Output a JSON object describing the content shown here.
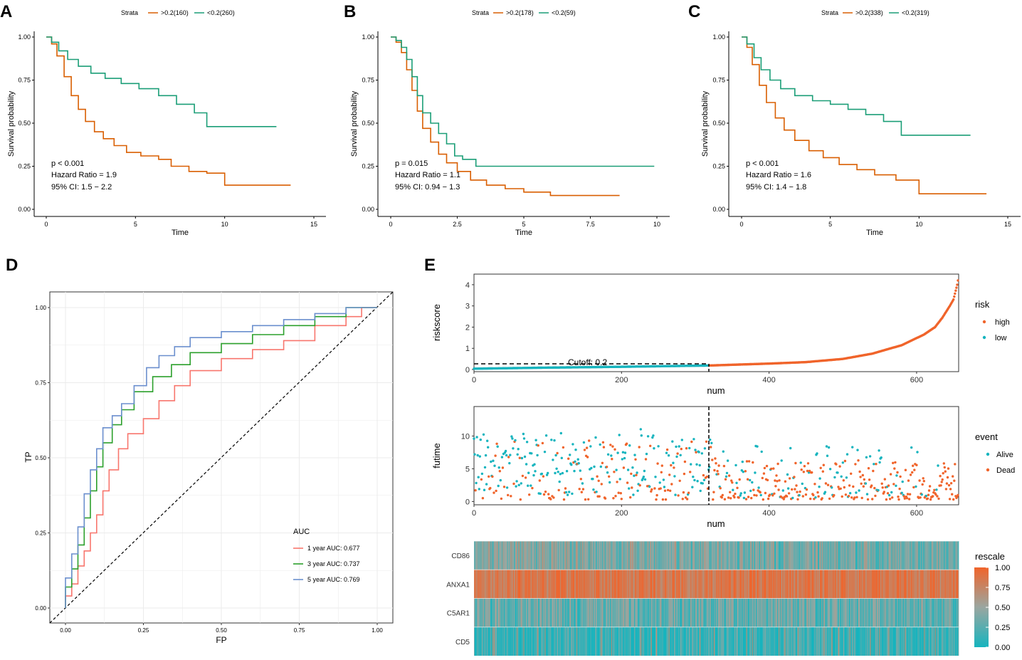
{
  "chart_data": [
    {
      "panel": "A",
      "type": "line",
      "subtype": "kaplan-meier",
      "legend_title": "Strata",
      "xlabel": "Time",
      "ylabel": "Survival probability",
      "xlim": [
        0,
        15
      ],
      "ylim": [
        0,
        1
      ],
      "x_ticks": [
        0,
        5,
        10,
        15
      ],
      "y_ticks": [
        0,
        0.25,
        0.5,
        0.75,
        1
      ],
      "x_tick_labels": [
        "0",
        "5",
        "10",
        "15"
      ],
      "y_tick_labels": [
        "0.00",
        "0.25",
        "0.50",
        "0.75",
        "1.00"
      ],
      "annotations": [
        "p < 0.001",
        "Hazard Ratio = 1.9",
        "95% CI: 1.5 − 2.2"
      ],
      "series": [
        {
          "name": ">0.2(160)",
          "color": "#d95f02",
          "x": [
            0,
            0.3,
            0.6,
            1.0,
            1.4,
            1.8,
            2.2,
            2.7,
            3.2,
            3.8,
            4.5,
            5.3,
            6.3,
            7.0,
            8.0,
            9.0,
            10.0,
            10.0,
            13.7
          ],
          "y": [
            1.0,
            0.96,
            0.89,
            0.77,
            0.66,
            0.58,
            0.51,
            0.45,
            0.41,
            0.37,
            0.33,
            0.31,
            0.29,
            0.25,
            0.22,
            0.21,
            0.21,
            0.14,
            0.14
          ]
        },
        {
          "name": "<0.2(260)",
          "color": "#1b9e77",
          "x": [
            0,
            0.3,
            0.7,
            1.2,
            1.8,
            2.5,
            3.3,
            4.2,
            5.2,
            6.3,
            7.3,
            8.3,
            9.0,
            9.0,
            12.9
          ],
          "y": [
            1.0,
            0.97,
            0.92,
            0.87,
            0.83,
            0.79,
            0.76,
            0.73,
            0.7,
            0.66,
            0.61,
            0.56,
            0.53,
            0.48,
            0.48
          ]
        }
      ]
    },
    {
      "panel": "B",
      "type": "line",
      "subtype": "kaplan-meier",
      "legend_title": "Strata",
      "xlabel": "Time",
      "ylabel": "Survival probability",
      "xlim": [
        0,
        10
      ],
      "ylim": [
        0,
        1
      ],
      "x_ticks": [
        0,
        2.5,
        5,
        7.5,
        10
      ],
      "y_ticks": [
        0,
        0.25,
        0.5,
        0.75,
        1
      ],
      "x_tick_labels": [
        "0",
        "2.5",
        "5",
        "7.5",
        "10"
      ],
      "y_tick_labels": [
        "0.00",
        "0.25",
        "0.50",
        "0.75",
        "1.00"
      ],
      "annotations": [
        "p = 0.015",
        "Hazard Ratio = 1.1",
        "95% CI: 0.94 − 1.3"
      ],
      "series": [
        {
          "name": ">0.2(178)",
          "color": "#d95f02",
          "x": [
            0,
            0.2,
            0.4,
            0.6,
            0.8,
            1.0,
            1.2,
            1.5,
            1.8,
            2.1,
            2.5,
            3.0,
            3.6,
            4.3,
            5.0,
            6.0,
            8.6
          ],
          "y": [
            1.0,
            0.97,
            0.91,
            0.81,
            0.69,
            0.57,
            0.47,
            0.39,
            0.32,
            0.27,
            0.22,
            0.17,
            0.14,
            0.12,
            0.1,
            0.08,
            0.08
          ]
        },
        {
          "name": "<0.2(59)",
          "color": "#1b9e77",
          "x": [
            0,
            0.2,
            0.4,
            0.6,
            0.8,
            1.0,
            1.2,
            1.5,
            1.8,
            2.1,
            2.4,
            2.7,
            3.2,
            9.9
          ],
          "y": [
            1.0,
            0.98,
            0.94,
            0.87,
            0.77,
            0.66,
            0.56,
            0.5,
            0.44,
            0.38,
            0.31,
            0.29,
            0.25,
            0.25
          ]
        }
      ]
    },
    {
      "panel": "C",
      "type": "line",
      "subtype": "kaplan-meier",
      "legend_title": "Strata",
      "xlabel": "Time",
      "ylabel": "Survival probability",
      "xlim": [
        0,
        15
      ],
      "ylim": [
        0,
        1
      ],
      "x_ticks": [
        0,
        5,
        10,
        15
      ],
      "y_ticks": [
        0,
        0.25,
        0.5,
        0.75,
        1
      ],
      "x_tick_labels": [
        "0",
        "5",
        "10",
        "15"
      ],
      "y_tick_labels": [
        "0.00",
        "0.25",
        "0.50",
        "0.75",
        "1.00"
      ],
      "annotations": [
        "p < 0.001",
        "Hazard Ratio = 1.6",
        "95% CI: 1.4 − 1.8"
      ],
      "series": [
        {
          "name": ">0.2(338)",
          "color": "#d95f02",
          "x": [
            0,
            0.3,
            0.6,
            1.0,
            1.4,
            1.9,
            2.4,
            3.0,
            3.8,
            4.6,
            5.5,
            6.5,
            7.5,
            8.7,
            10.0,
            10.0,
            13.8
          ],
          "y": [
            1.0,
            0.94,
            0.84,
            0.72,
            0.62,
            0.53,
            0.46,
            0.4,
            0.34,
            0.3,
            0.26,
            0.23,
            0.2,
            0.17,
            0.16,
            0.09,
            0.09
          ]
        },
        {
          "name": "<0.2(319)",
          "color": "#1b9e77",
          "x": [
            0,
            0.3,
            0.7,
            1.1,
            1.6,
            2.2,
            3.0,
            4.0,
            5.0,
            6.0,
            7.0,
            8.0,
            9.0,
            9.0,
            12.9
          ],
          "y": [
            1.0,
            0.96,
            0.88,
            0.81,
            0.75,
            0.7,
            0.66,
            0.63,
            0.61,
            0.58,
            0.55,
            0.51,
            0.48,
            0.43,
            0.43
          ]
        }
      ]
    },
    {
      "panel": "D",
      "type": "line",
      "subtype": "roc",
      "xlabel": "FP",
      "ylabel": "TP",
      "xlim": [
        0,
        1
      ],
      "ylim": [
        0,
        1
      ],
      "x_ticks": [
        0,
        0.25,
        0.5,
        0.75,
        1
      ],
      "y_ticks": [
        0,
        0.25,
        0.5,
        0.75,
        1
      ],
      "x_tick_labels": [
        "0.00",
        "0.25",
        "0.50",
        "0.75",
        "1.00"
      ],
      "y_tick_labels": [
        "0.00",
        "0.25",
        "0.50",
        "0.75",
        "1.00"
      ],
      "legend_title": "AUC",
      "reference_line": "dashed diagonal",
      "series": [
        {
          "name": "1 year AUC: 0.677",
          "color": "#f8766d",
          "x": [
            0,
            0.02,
            0.04,
            0.06,
            0.08,
            0.1,
            0.12,
            0.14,
            0.17,
            0.2,
            0.25,
            0.3,
            0.35,
            0.4,
            0.5,
            0.6,
            0.7,
            0.8,
            0.9,
            0.95,
            1.0
          ],
          "y": [
            0,
            0.04,
            0.08,
            0.14,
            0.19,
            0.25,
            0.31,
            0.39,
            0.46,
            0.53,
            0.58,
            0.63,
            0.69,
            0.74,
            0.79,
            0.83,
            0.86,
            0.89,
            0.94,
            0.97,
            1.0
          ]
        },
        {
          "name": "3 year AUC: 0.737",
          "color": "#2ca02c",
          "x": [
            0,
            0.02,
            0.04,
            0.06,
            0.08,
            0.1,
            0.12,
            0.15,
            0.18,
            0.22,
            0.28,
            0.34,
            0.4,
            0.5,
            0.6,
            0.7,
            0.8,
            0.9,
            1.0
          ],
          "y": [
            0,
            0.07,
            0.13,
            0.21,
            0.3,
            0.39,
            0.47,
            0.55,
            0.61,
            0.66,
            0.72,
            0.77,
            0.81,
            0.85,
            0.88,
            0.91,
            0.94,
            0.97,
            1.0
          ]
        },
        {
          "name": "5 year AUC: 0.769",
          "color": "#6b8fce",
          "x": [
            0,
            0.02,
            0.04,
            0.06,
            0.08,
            0.1,
            0.12,
            0.15,
            0.18,
            0.22,
            0.26,
            0.3,
            0.35,
            0.4,
            0.5,
            0.6,
            0.7,
            0.8,
            0.9,
            1.0
          ],
          "y": [
            0,
            0.1,
            0.18,
            0.27,
            0.38,
            0.46,
            0.53,
            0.6,
            0.64,
            0.68,
            0.74,
            0.8,
            0.84,
            0.87,
            0.9,
            0.92,
            0.94,
            0.96,
            0.98,
            1.0
          ]
        }
      ]
    },
    {
      "panel": "E",
      "type": "scatter",
      "subtype": "risk-score-distribution",
      "xlabel": "num",
      "ylabel": "riskscore",
      "xlim": [
        0,
        657
      ],
      "ylim": [
        -0.1,
        4.5
      ],
      "x_ticks": [
        0,
        200,
        400,
        600
      ],
      "y_ticks": [
        0,
        1,
        2,
        3,
        4
      ],
      "x_tick_labels": [
        "0",
        "200",
        "400",
        "600"
      ],
      "y_tick_labels": [
        "0",
        "1",
        "2",
        "3",
        "4"
      ],
      "cutoff_label": "Cutoff: 0.2",
      "cutoff_value": 0.2,
      "cutoff_index": 319,
      "n_samples": 657,
      "legend_title": "risk",
      "legend_items": [
        {
          "label": "high",
          "color": "#f0642b"
        },
        {
          "label": "low",
          "color": "#16b4be"
        }
      ],
      "curve_anchors": {
        "num": [
          0,
          100,
          200,
          319,
          400,
          450,
          500,
          540,
          580,
          610,
          625,
          635,
          645,
          650,
          655,
          657
        ],
        "riskscore": [
          0.04,
          0.09,
          0.13,
          0.19,
          0.28,
          0.35,
          0.5,
          0.75,
          1.15,
          1.65,
          2.0,
          2.45,
          3.0,
          3.3,
          4.0,
          4.4
        ]
      }
    },
    {
      "panel": "E",
      "type": "scatter",
      "subtype": "survival-time-status",
      "xlabel": "num",
      "ylabel": "futime",
      "xlim": [
        0,
        657
      ],
      "ylim": [
        -0.5,
        14.5
      ],
      "x_ticks": [
        0,
        200,
        400,
        600
      ],
      "y_ticks": [
        0,
        5,
        10
      ],
      "x_tick_labels": [
        "0",
        "200",
        "400",
        "600"
      ],
      "y_tick_labels": [
        "0",
        "5",
        "10"
      ],
      "legend_title": "event",
      "legend_items": [
        {
          "label": "Alive",
          "color": "#16b4be"
        },
        {
          "label": "Dead",
          "color": "#f0642b"
        }
      ],
      "vline_index": 319,
      "note": "per-sample points are not legible individually; points are a seeded approximation of the visible distribution"
    },
    {
      "panel": "E",
      "type": "heatmap",
      "rows": [
        "CD86",
        "ANXA1",
        "C5AR1",
        "CD5"
      ],
      "n_columns": 657,
      "row_level_estimate": [
        0.35,
        0.85,
        0.3,
        0.12
      ],
      "legend_title": "rescale",
      "colorbar_ticks": [
        0,
        0.25,
        0.5,
        0.75,
        1
      ],
      "colorbar_tick_labels": [
        "0.00",
        "0.25",
        "0.50",
        "0.75",
        "1.00"
      ],
      "color_low": "#16b4be",
      "color_high": "#f0642b"
    }
  ],
  "panel_labels": [
    "A",
    "B",
    "C",
    "D",
    "E"
  ],
  "colors": {
    "orange": "#d95f02",
    "teal": "#1b9e77",
    "risk_high": "#f0642b",
    "risk_low": "#16b4be"
  }
}
